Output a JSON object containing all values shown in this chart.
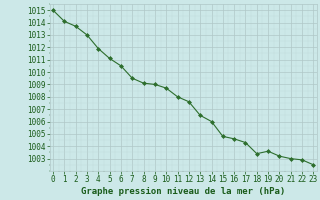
{
  "x": [
    0,
    1,
    2,
    3,
    4,
    5,
    6,
    7,
    8,
    9,
    10,
    11,
    12,
    13,
    14,
    15,
    16,
    17,
    18,
    19,
    20,
    21,
    22,
    23
  ],
  "y": [
    1015,
    1014.1,
    1013.7,
    1013.0,
    1011.9,
    1011.1,
    1010.5,
    1009.5,
    1009.1,
    1009.0,
    1008.7,
    1008.0,
    1007.6,
    1006.5,
    1006.0,
    1004.8,
    1004.6,
    1004.3,
    1003.4,
    1003.6,
    1003.2,
    1003.0,
    1002.9,
    1002.5
  ],
  "line_color": "#2d6e2d",
  "marker": "D",
  "marker_size": 2.0,
  "line_width": 0.8,
  "bg_color": "#cce8e8",
  "grid_major_color": "#b0c8c8",
  "grid_minor_color": "#c0dada",
  "xlabel": "Graphe pression niveau de la mer (hPa)",
  "xlabel_color": "#1a5c1a",
  "xlabel_fontsize": 6.5,
  "tick_color": "#1a5c1a",
  "tick_fontsize": 5.5,
  "ylim": [
    1002.0,
    1015.5
  ],
  "yticks": [
    1003,
    1004,
    1005,
    1006,
    1007,
    1008,
    1009,
    1010,
    1011,
    1012,
    1013,
    1014,
    1015
  ],
  "xlim": [
    -0.3,
    23.3
  ]
}
